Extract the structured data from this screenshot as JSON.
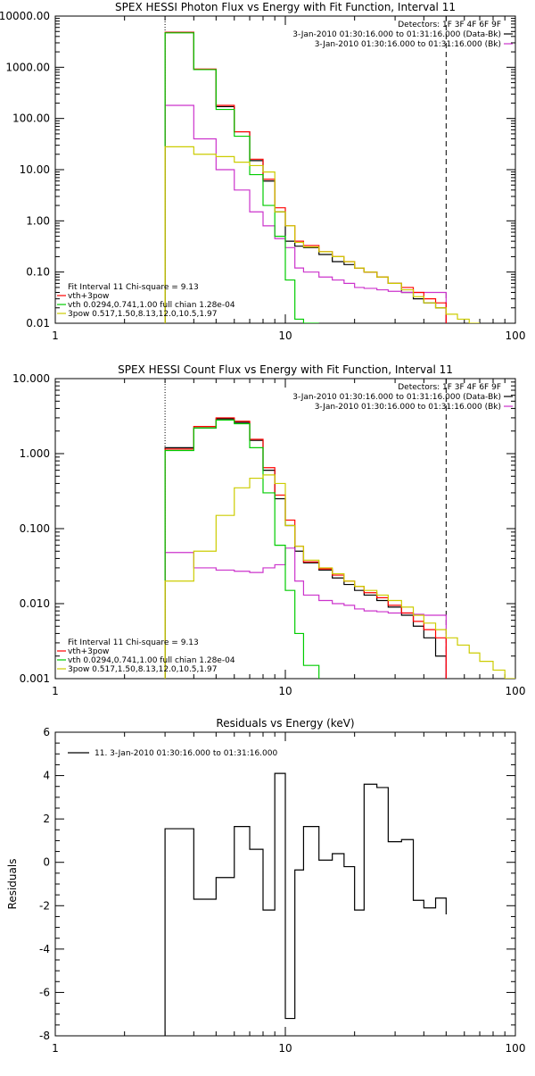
{
  "chart_data": [
    {
      "type": "line",
      "title": "SPEX HESSI Photon Flux vs Energy with Fit Function, Interval 11",
      "xlabel": "",
      "ylabel": "",
      "x_scale": "log",
      "y_scale": "log",
      "xlim": [
        1,
        100
      ],
      "ylim": [
        0.01,
        10000
      ],
      "x_ticks": [
        1,
        10,
        100
      ],
      "x_tick_labels": [
        "1",
        "10",
        "100"
      ],
      "y_ticks": [
        0.01,
        0.1,
        1,
        10,
        100,
        1000,
        10000
      ],
      "y_tick_labels": [
        "0.01",
        "0.10",
        "1.00",
        "10.00",
        "100.00",
        "1000.00",
        "10000.00"
      ],
      "vlines": [
        {
          "x": 3,
          "style": "dotted",
          "color": "#000000"
        },
        {
          "x": 50,
          "style": "dashed",
          "color": "#000000"
        }
      ],
      "annotations_top_right": [
        {
          "text": "Detectors: 1F 3F 4F 6F 9F",
          "color": "#000000"
        },
        {
          "text": "3-Jan-2010 01:30:16.000 to 01:31:16.000 (Data-Bk)",
          "color": "#000000"
        },
        {
          "text": "3-Jan-2010 01:30:16.000 to 01:31:16.000 (Bk)",
          "color": "#cc33cc"
        }
      ],
      "legend_bottom_left": [
        {
          "text": "Fit Interval 11    Chi-square = 9.13",
          "color": "#000000"
        },
        {
          "text": "vth+3pow",
          "color": "#ff0000"
        },
        {
          "text": "vth 0.0294,0.741,1.00  full chian 1.28e-04",
          "color": "#00cc00"
        },
        {
          "text": "3pow 0.517,1.50,8.13,12.0,10.5,1.97",
          "color": "#cccc00"
        }
      ],
      "bin_edges": [
        3,
        4,
        5,
        6,
        7,
        8,
        9,
        10,
        11,
        12,
        14,
        16,
        18,
        20,
        22,
        25,
        28,
        32,
        36,
        40,
        45,
        50,
        56,
        63,
        70
      ],
      "series": [
        {
          "color": "#000000",
          "values": [
            4800,
            900,
            170,
            55,
            15,
            6,
            1.5,
            0.4,
            0.32,
            0.3,
            0.22,
            0.16,
            0.14,
            0.12,
            0.1,
            0.08,
            0.06,
            0.04,
            0.03,
            0.025,
            0.02
          ]
        },
        {
          "color": "#cc33cc",
          "values": [
            180,
            40,
            10,
            4,
            1.5,
            0.8,
            0.45,
            0.3,
            0.12,
            0.1,
            0.08,
            0.07,
            0.06,
            0.05,
            0.048,
            0.045,
            0.042,
            0.04,
            0.04,
            0.04,
            0.04
          ]
        },
        {
          "color": "#ff0000",
          "values": [
            4800,
            920,
            180,
            55,
            16,
            6.5,
            1.8,
            0.8,
            0.4,
            0.33,
            0.25,
            0.2,
            0.16,
            0.12,
            0.1,
            0.08,
            0.06,
            0.05,
            0.04,
            0.03,
            0.025
          ]
        },
        {
          "color": "#00cc00",
          "values": [
            4700,
            900,
            150,
            45,
            8,
            2,
            0.5,
            0.07,
            0.012,
            0.005
          ]
        },
        {
          "color": "#cccc00",
          "values": [
            28,
            20,
            18,
            14,
            12,
            9,
            1.5,
            0.8,
            0.38,
            0.31,
            0.25,
            0.2,
            0.16,
            0.12,
            0.1,
            0.08,
            0.06,
            0.045,
            0.033,
            0.025,
            0.02,
            0.015,
            0.012,
            0.01
          ]
        }
      ]
    },
    {
      "type": "line",
      "title": "SPEX HESSI Count Flux vs Energy with Fit Function, Interval 11",
      "xlabel": "",
      "ylabel": "",
      "x_scale": "log",
      "y_scale": "log",
      "xlim": [
        1,
        100
      ],
      "ylim": [
        0.001,
        10
      ],
      "x_ticks": [
        1,
        10,
        100
      ],
      "x_tick_labels": [
        "1",
        "10",
        "100"
      ],
      "y_ticks": [
        0.001,
        0.01,
        0.1,
        1,
        10
      ],
      "y_tick_labels": [
        "0.001",
        "0.010",
        "0.100",
        "1.000",
        "10.000"
      ],
      "vlines": [
        {
          "x": 3,
          "style": "dotted",
          "color": "#000000"
        },
        {
          "x": 50,
          "style": "dashed",
          "color": "#000000"
        }
      ],
      "annotations_top_right": [
        {
          "text": "Detectors: 1F 3F 4F 6F 9F",
          "color": "#000000"
        },
        {
          "text": "3-Jan-2010 01:30:16.000 to 01:31:16.000 (Data-Bk)",
          "color": "#000000"
        },
        {
          "text": "3-Jan-2010 01:30:16.000 to 01:31:16.000 (Bk)",
          "color": "#cc33cc"
        }
      ],
      "legend_bottom_left": [
        {
          "text": "Fit Interval 11    Chi-square = 9.13",
          "color": "#000000"
        },
        {
          "text": "vth+3pow",
          "color": "#ff0000"
        },
        {
          "text": "vth 0.0294,0.741,1.00  full chian 1.28e-04",
          "color": "#00cc00"
        },
        {
          "text": "3pow 0.517,1.50,8.13,12.0,10.5,1.97",
          "color": "#cccc00"
        }
      ],
      "bin_edges": [
        3,
        4,
        5,
        6,
        7,
        8,
        9,
        10,
        11,
        12,
        14,
        16,
        18,
        20,
        22,
        25,
        28,
        32,
        36,
        40,
        45,
        50,
        56,
        63,
        70,
        80,
        90,
        100
      ],
      "series": [
        {
          "color": "#000000",
          "values": [
            1.2,
            2.2,
            2.9,
            2.6,
            1.5,
            0.6,
            0.25,
            0.11,
            0.05,
            0.035,
            0.028,
            0.022,
            0.018,
            0.015,
            0.013,
            0.011,
            0.009,
            0.007,
            0.005,
            0.0035,
            0.002
          ]
        },
        {
          "color": "#cc33cc",
          "values": [
            0.048,
            0.03,
            0.028,
            0.027,
            0.026,
            0.03,
            0.033,
            0.055,
            0.02,
            0.013,
            0.011,
            0.01,
            0.0095,
            0.0085,
            0.008,
            0.0078,
            0.0075,
            0.0075,
            0.0072,
            0.007,
            0.007
          ]
        },
        {
          "color": "#ff0000",
          "values": [
            1.15,
            2.3,
            3.0,
            2.7,
            1.55,
            0.65,
            0.28,
            0.13,
            0.058,
            0.036,
            0.029,
            0.024,
            0.02,
            0.017,
            0.014,
            0.012,
            0.0095,
            0.0075,
            0.0058,
            0.0045,
            0.0035
          ]
        },
        {
          "color": "#00cc00",
          "values": [
            1.1,
            2.2,
            2.8,
            2.5,
            1.2,
            0.3,
            0.06,
            0.015,
            0.004,
            0.0015
          ]
        },
        {
          "color": "#cccc00",
          "values": [
            0.02,
            0.05,
            0.15,
            0.35,
            0.47,
            0.52,
            0.4,
            0.11,
            0.058,
            0.038,
            0.03,
            0.025,
            0.02,
            0.017,
            0.015,
            0.013,
            0.011,
            0.009,
            0.007,
            0.0055,
            0.0045,
            0.0035,
            0.0028,
            0.0022,
            0.0017,
            0.0013,
            0.001
          ]
        }
      ]
    },
    {
      "type": "line",
      "title": "Residuals vs Energy (keV)",
      "xlabel": "",
      "ylabel": "Residuals",
      "x_scale": "log",
      "y_scale": "linear",
      "xlim": [
        1,
        100
      ],
      "ylim": [
        -8,
        6
      ],
      "x_ticks": [
        1,
        10,
        100
      ],
      "x_tick_labels": [
        "1",
        "10",
        "100"
      ],
      "y_ticks": [
        -8,
        -6,
        -4,
        -2,
        0,
        2,
        4,
        6
      ],
      "y_tick_labels": [
        "-8",
        "-6",
        "-4",
        "-2",
        "0",
        "2",
        "4",
        "6"
      ],
      "legend_top_left": [
        {
          "text": "11.  3-Jan-2010 01:30:16.000 to 01:31:16.000",
          "color": "#000000"
        }
      ],
      "bin_edges": [
        3,
        4,
        5,
        6,
        7,
        8,
        9,
        10,
        11,
        12,
        14,
        16,
        18,
        20,
        22,
        25,
        28,
        32,
        36,
        40,
        45,
        50
      ],
      "series": [
        {
          "color": "#000000",
          "values": [
            1.55,
            -1.7,
            -0.7,
            1.65,
            0.6,
            -2.2,
            4.1,
            -7.2,
            -0.35,
            1.65,
            0.1,
            0.4,
            -0.2,
            -2.2,
            3.6,
            3.45,
            0.95,
            1.05,
            -1.75,
            -2.1,
            -1.65,
            -2.4
          ]
        }
      ]
    }
  ]
}
